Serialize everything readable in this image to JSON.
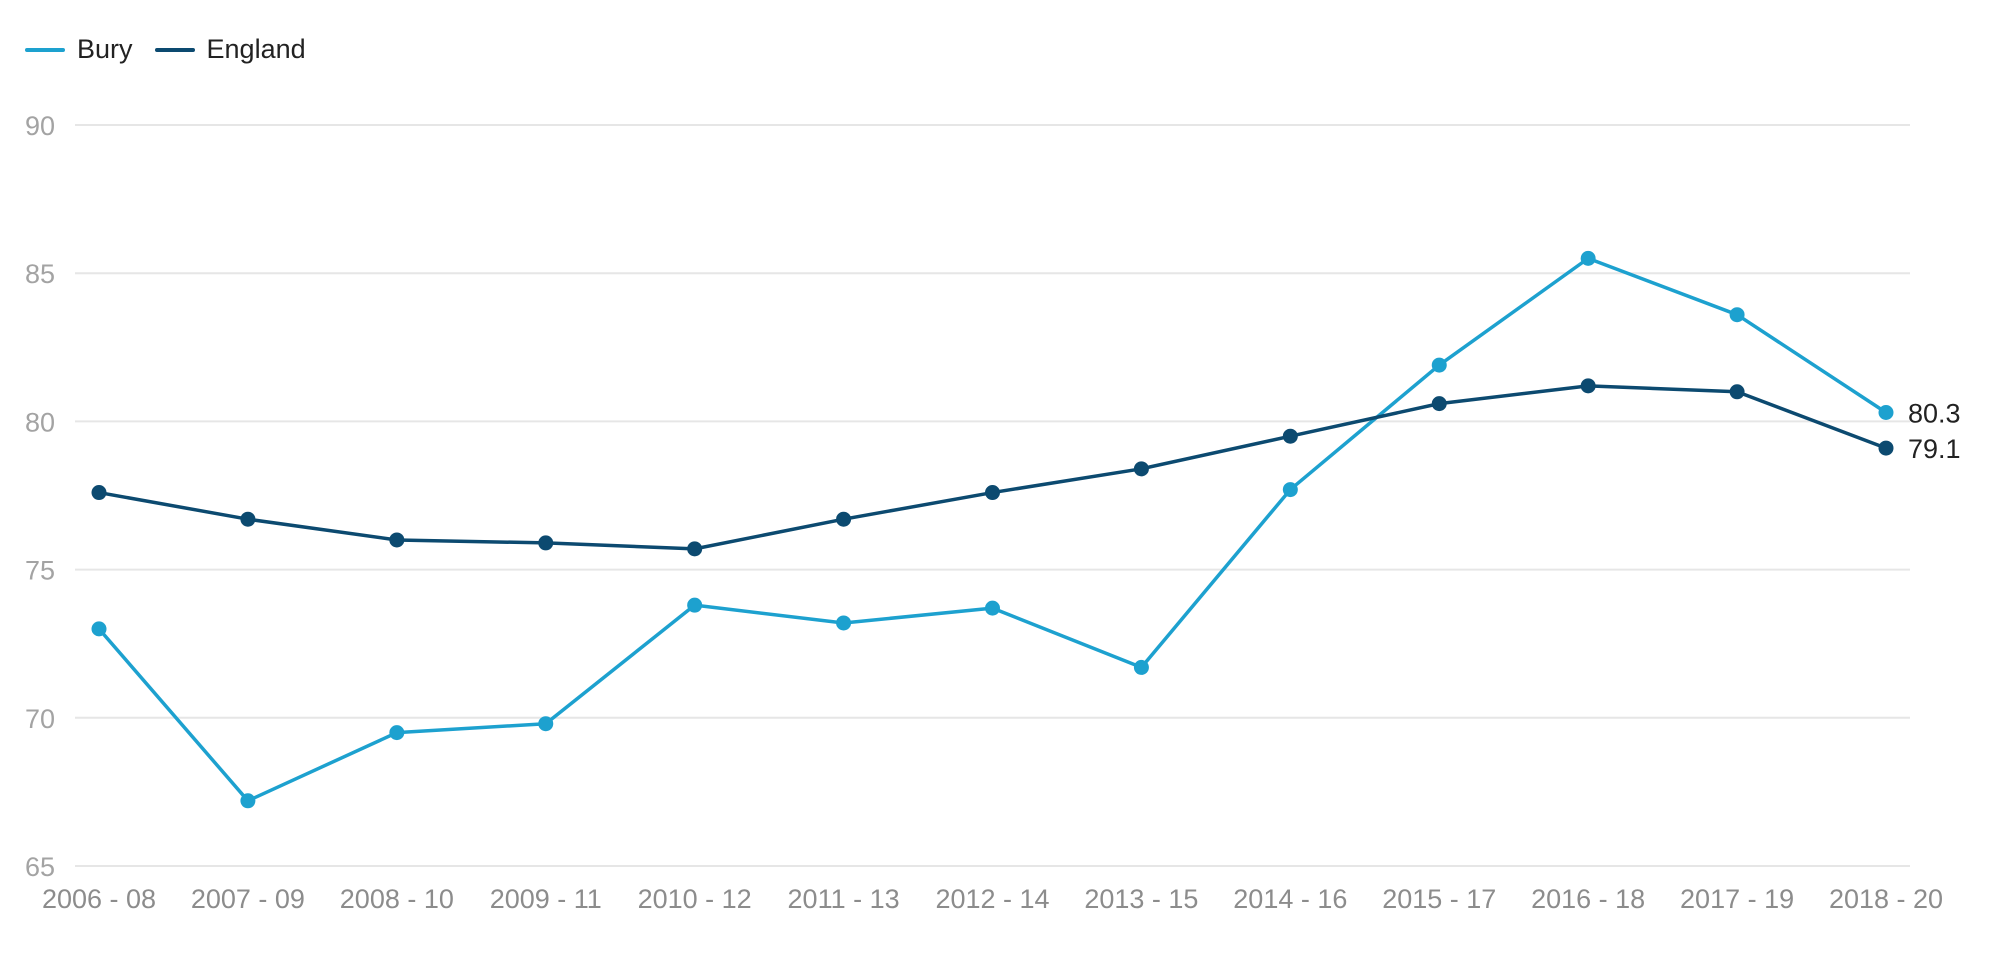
{
  "chart_data": {
    "type": "line",
    "categories": [
      "2006 - 08",
      "2007 - 09",
      "2008 - 10",
      "2009 - 11",
      "2010 - 12",
      "2011 - 13",
      "2012 - 14",
      "2013 - 15",
      "2014 - 16",
      "2015 - 17",
      "2016 - 18",
      "2017 - 19",
      "2018 - 20"
    ],
    "series": [
      {
        "name": "Bury",
        "color": "#1da1cf",
        "values": [
          73.0,
          67.2,
          69.5,
          69.8,
          73.8,
          73.2,
          73.7,
          71.7,
          77.7,
          81.9,
          85.5,
          83.6,
          80.3
        ],
        "end_label": "80.3"
      },
      {
        "name": "England",
        "color": "#0c4a70",
        "values": [
          77.6,
          76.7,
          76.0,
          75.9,
          75.7,
          76.7,
          77.6,
          78.4,
          79.5,
          80.6,
          81.2,
          81.0,
          79.1
        ],
        "end_label": "79.1"
      }
    ],
    "yticks": [
      "65",
      "70",
      "75",
      "80",
      "85",
      "90"
    ],
    "ylim": [
      65,
      90
    ],
    "grid": true,
    "legend_position": "top-left"
  }
}
